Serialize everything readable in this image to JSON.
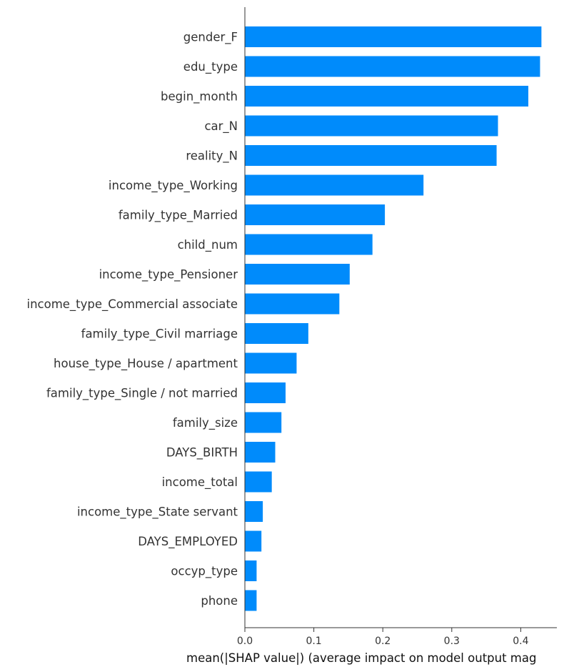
{
  "chart_data": {
    "type": "bar",
    "orientation": "horizontal",
    "bar_color": "#008bfb",
    "categories": [
      "gender_F",
      "edu_type",
      "begin_month",
      "car_N",
      "reality_N",
      "income_type_Working",
      "family_type_Married",
      "child_num",
      "income_type_Pensioner",
      "income_type_Commercial associate",
      "family_type_Civil marriage",
      "house_type_House / apartment",
      "family_type_Single / not married",
      "family_size",
      "DAYS_BIRTH",
      "income_total",
      "income_type_State servant",
      "DAYS_EMPLOYED",
      "occyp_type",
      "phone"
    ],
    "values": [
      0.43,
      0.428,
      0.411,
      0.367,
      0.365,
      0.259,
      0.203,
      0.185,
      0.152,
      0.137,
      0.092,
      0.075,
      0.059,
      0.053,
      0.044,
      0.039,
      0.026,
      0.024,
      0.017,
      0.017
    ],
    "xlabel": "mean(|SHAP value|) (average impact on model output mag",
    "ylabel": "",
    "title": "",
    "xlim": [
      0,
      0.45
    ],
    "xticks": [
      "0.0",
      "0.1",
      "0.2",
      "0.3",
      "0.4"
    ],
    "grid": false
  }
}
